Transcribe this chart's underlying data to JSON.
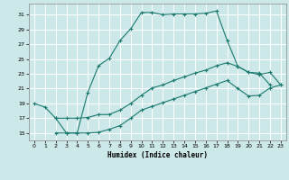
{
  "xlabel": "Humidex (Indice chaleur)",
  "background_color": "#cde8e8",
  "grid_color": "#ffffff",
  "line_color": "#1a7a6e",
  "xlim": [
    -0.5,
    23.5
  ],
  "ylim": [
    14,
    32.5
  ],
  "yticks": [
    15,
    17,
    19,
    21,
    23,
    25,
    27,
    29,
    31
  ],
  "xticks": [
    0,
    1,
    2,
    3,
    4,
    5,
    6,
    7,
    8,
    9,
    10,
    11,
    12,
    13,
    14,
    15,
    16,
    17,
    18,
    19,
    20,
    21,
    22,
    23
  ],
  "s1_x": [
    0,
    1,
    2,
    3,
    4,
    5,
    6,
    7,
    8,
    9,
    10,
    11,
    12,
    13,
    14,
    15,
    16,
    17,
    18,
    19,
    20,
    21,
    22
  ],
  "s1_y": [
    19,
    18.5,
    17,
    15,
    15,
    20.5,
    24.1,
    25.1,
    27.5,
    29.1,
    31.3,
    31.3,
    31.0,
    31.1,
    31.1,
    31.1,
    31.2,
    31.5,
    27.5,
    24.0,
    23.2,
    23.1,
    21.5
  ],
  "s2_x": [
    2,
    3,
    4,
    5,
    6,
    7,
    8,
    9,
    10,
    11,
    12,
    13,
    14,
    15,
    16,
    17,
    18,
    19,
    20,
    21,
    22,
    23
  ],
  "s2_y": [
    17,
    17,
    17,
    17.1,
    17.5,
    17.5,
    18.1,
    19.0,
    20.1,
    21.1,
    21.5,
    22.1,
    22.6,
    23.1,
    23.5,
    24.1,
    24.5,
    24.0,
    23.2,
    22.9,
    23.2,
    21.5
  ],
  "s3_x": [
    2,
    3,
    4,
    5,
    6,
    7,
    8,
    9,
    10,
    11,
    12,
    13,
    14,
    15,
    16,
    17,
    18,
    19,
    20,
    21,
    22,
    23
  ],
  "s3_y": [
    15,
    15,
    15,
    15.0,
    15.1,
    15.5,
    16.0,
    17.0,
    18.1,
    18.6,
    19.1,
    19.6,
    20.1,
    20.6,
    21.1,
    21.6,
    22.1,
    21.0,
    20.0,
    20.1,
    21.1,
    21.5
  ]
}
